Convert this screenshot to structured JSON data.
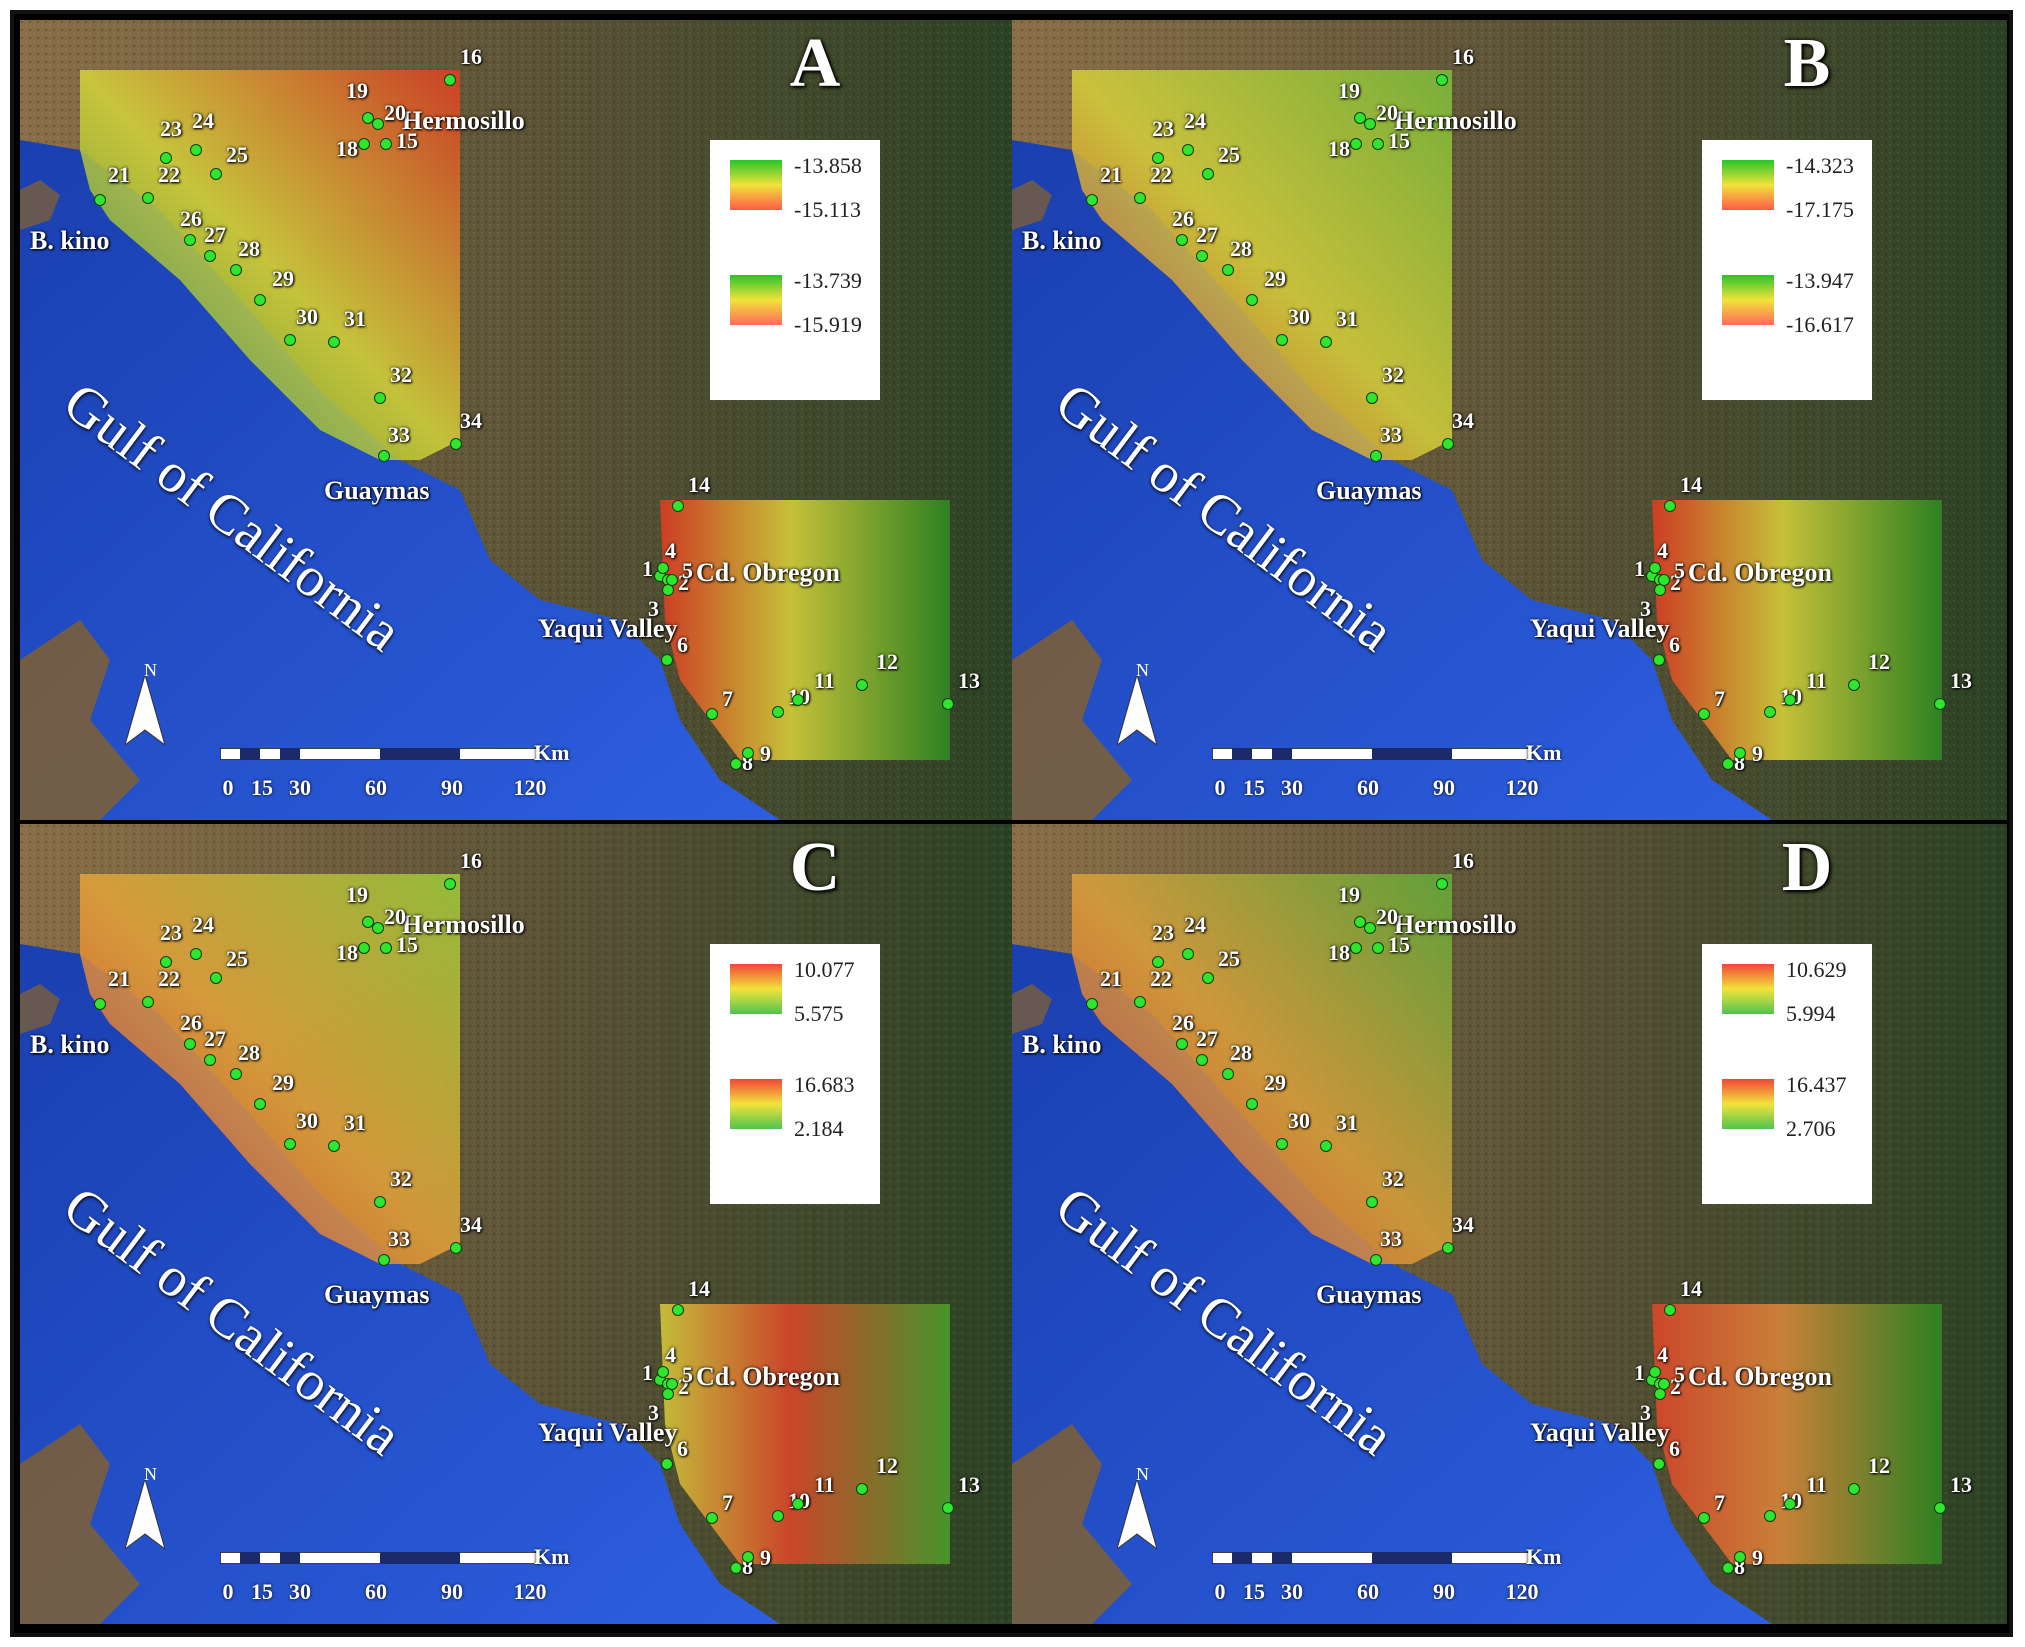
{
  "figure": {
    "panels": [
      {
        "letter": "A",
        "legend": [
          {
            "high": "-13.858",
            "low": "-15.113",
            "top": "#28c528",
            "bottom": "#ff5b4a"
          },
          {
            "high": "-13.739",
            "low": "-15.919",
            "top": "#28c528",
            "bottom": "#ff6b5b"
          }
        ],
        "overlay_north": {
          "sw": "#3a9a2a",
          "ne": "#e23a22",
          "mid": "#d7d83a"
        },
        "overlay_south": {
          "left": "#e33a22",
          "right": "#2e8b22",
          "mid": "#dcd53a"
        }
      },
      {
        "letter": "B",
        "legend": [
          {
            "high": "-14.323",
            "low": "-17.175",
            "top": "#28c528",
            "bottom": "#ff5b4a"
          },
          {
            "high": "-13.947",
            "low": "-16.617",
            "top": "#28c528",
            "bottom": "#ff6b5b"
          }
        ],
        "overlay_north": {
          "sw": "#e23a22",
          "ne": "#7cc23a",
          "mid": "#d9d43a"
        },
        "overlay_south": {
          "left": "#e33a22",
          "right": "#2e8b22",
          "mid": "#dcd53a"
        }
      },
      {
        "letter": "C",
        "legend": [
          {
            "high": "10.077",
            "low": "5.575",
            "top": "#f2453a",
            "bottom": "#4fc44f"
          },
          {
            "high": "16.683",
            "low": "2.184",
            "top": "#f2453a",
            "bottom": "#4fc44f"
          }
        ],
        "overlay_north": {
          "sw": "#e23a22",
          "ne": "#9ed03a",
          "mid": "#e8a53a"
        },
        "overlay_south": {
          "left": "#d8cf3a",
          "right": "#4aa22a",
          "mid": "#e2452a"
        }
      },
      {
        "letter": "D",
        "legend": [
          {
            "high": "10.629",
            "low": "5.994",
            "top": "#f2453a",
            "bottom": "#4fc44f"
          },
          {
            "high": "16.437",
            "low": "2.706",
            "top": "#f2453a",
            "bottom": "#4fc44f"
          }
        ],
        "overlay_north": {
          "sw": "#e23a22",
          "ne": "#5fb03a",
          "mid": "#e0a23a"
        },
        "overlay_south": {
          "left": "#e2452a",
          "right": "#2e8b22",
          "mid": "#e08a3a"
        }
      }
    ],
    "places": {
      "hermosillo": "Hermosillo",
      "bkino": "B. kino",
      "guaymas": "Guaymas",
      "obregon": "Cd. Obregon",
      "yaqui": "Yaqui Valley",
      "gulf": "Gulf of California"
    },
    "stations": [
      "1",
      "2",
      "3",
      "4",
      "5",
      "6",
      "7",
      "8",
      "9",
      "10",
      "11",
      "12",
      "13",
      "14",
      "15",
      "16",
      "18",
      "19",
      "20",
      "21",
      "22",
      "23",
      "24",
      "25",
      "26",
      "27",
      "28",
      "29",
      "30",
      "31",
      "32",
      "33",
      "34"
    ],
    "north_label": "N",
    "scale": {
      "ticks": [
        "0",
        "15",
        "30",
        "60",
        "90",
        "120"
      ],
      "unit": "Km"
    },
    "colors": {
      "sea": "#1e46b8",
      "land": "#6b5a3a",
      "vegetation": "#2f4a22",
      "frame": "#111111"
    }
  }
}
